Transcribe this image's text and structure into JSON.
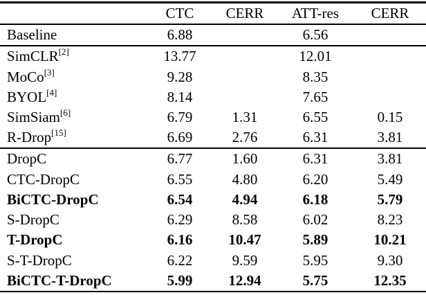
{
  "table": {
    "columns": [
      "CTC",
      "CERR",
      "ATT-res",
      "CERR"
    ],
    "rows": [
      {
        "name": "Baseline",
        "ref": "",
        "values": [
          "6.88",
          "",
          "6.56",
          ""
        ],
        "bold": false,
        "rule_above": false
      },
      {
        "name": "SimCLR",
        "ref": "[2]",
        "values": [
          "13.77",
          "",
          "12.01",
          ""
        ],
        "bold": false,
        "rule_above": true
      },
      {
        "name": "MoCo",
        "ref": "[3]",
        "values": [
          "9.28",
          "",
          "8.35",
          ""
        ],
        "bold": false,
        "rule_above": false
      },
      {
        "name": "BYOL",
        "ref": "[4]",
        "values": [
          "8.14",
          "",
          "7.65",
          ""
        ],
        "bold": false,
        "rule_above": false
      },
      {
        "name": "SimSiam",
        "ref": "[6]",
        "values": [
          "6.79",
          "1.31",
          "6.55",
          "0.15"
        ],
        "bold": false,
        "rule_above": false
      },
      {
        "name": "R-Drop",
        "ref": "[15]",
        "values": [
          "6.69",
          "2.76",
          "6.31",
          "3.81"
        ],
        "bold": false,
        "rule_above": false
      },
      {
        "name": "DropC",
        "ref": "",
        "values": [
          "6.77",
          "1.60",
          "6.31",
          "3.81"
        ],
        "bold": false,
        "rule_above": true
      },
      {
        "name": "CTC-DropC",
        "ref": "",
        "values": [
          "6.55",
          "4.80",
          "6.20",
          "5.49"
        ],
        "bold": false,
        "rule_above": false
      },
      {
        "name": "BiCTC-DropC",
        "ref": "",
        "values": [
          "6.54",
          "4.94",
          "6.18",
          "5.79"
        ],
        "bold": true,
        "rule_above": false
      },
      {
        "name": "S-DropC",
        "ref": "",
        "values": [
          "6.29",
          "8.58",
          "6.02",
          "8.23"
        ],
        "bold": false,
        "rule_above": false
      },
      {
        "name": "T-DropC",
        "ref": "",
        "values": [
          "6.16",
          "10.47",
          "5.89",
          "10.21"
        ],
        "bold": true,
        "rule_above": false
      },
      {
        "name": "S-T-DropC",
        "ref": "",
        "values": [
          "6.22",
          "9.59",
          "5.95",
          "9.30"
        ],
        "bold": false,
        "rule_above": false
      },
      {
        "name": "BiCTC-T-DropC",
        "ref": "",
        "values": [
          "5.99",
          "12.94",
          "5.75",
          "12.35"
        ],
        "bold": true,
        "rule_above": false
      }
    ]
  }
}
